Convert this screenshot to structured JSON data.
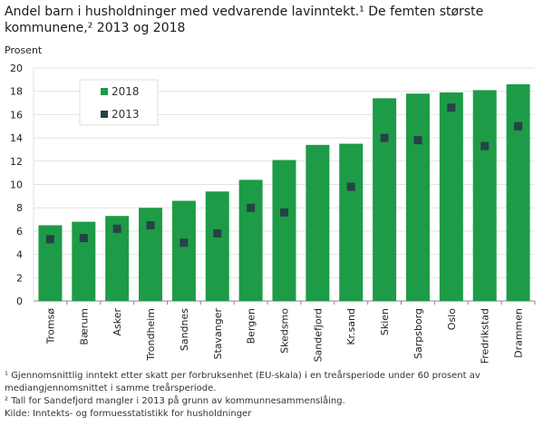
{
  "chart_data": {
    "type": "bar",
    "title": "Andel barn i husholdninger med vedvarende lavinntekt.¹ De femten største kommunene,² 2013 og 2018",
    "ylabel": "Prosent",
    "xlabel": "",
    "ylim": [
      0,
      20
    ],
    "yticks": [
      0,
      2,
      4,
      6,
      8,
      10,
      12,
      14,
      16,
      18,
      20
    ],
    "grid": true,
    "legend_position": "top-left",
    "categories": [
      "Tromsø",
      "Bærum",
      "Asker",
      "Trondheim",
      "Sandnes",
      "Stavanger",
      "Bergen",
      "Skedsmo",
      "Sandefjord",
      "Kr.sand",
      "Skien",
      "Sarpsborg",
      "Oslo",
      "Fredrikstad",
      "Drammen"
    ],
    "series": [
      {
        "name": "2018",
        "kind": "bar",
        "color": "#1e9b47",
        "values": [
          6.5,
          6.8,
          7.3,
          8.0,
          8.6,
          9.4,
          10.4,
          12.1,
          13.4,
          13.5,
          17.4,
          17.8,
          17.9,
          18.1,
          18.6
        ]
      },
      {
        "name": "2013",
        "kind": "marker",
        "color": "#274247",
        "values": [
          5.3,
          5.4,
          6.2,
          6.5,
          5.0,
          5.8,
          8.0,
          7.6,
          null,
          9.8,
          14.0,
          13.8,
          16.6,
          13.3,
          15.0
        ]
      }
    ]
  },
  "footnotes": [
    "¹ Gjennomsnittlig inntekt  etter skatt per forbruksenhet (EU-skala) i en treårsperiode under 60 prosent av mediangjennomsnittet i samme treårsperiode.",
    "² Tall for Sandefjord mangler i 2013 på grunn av kommunnesammenslåing.",
    "Kilde: Inntekts- og formuesstatistikk for husholdninger"
  ]
}
